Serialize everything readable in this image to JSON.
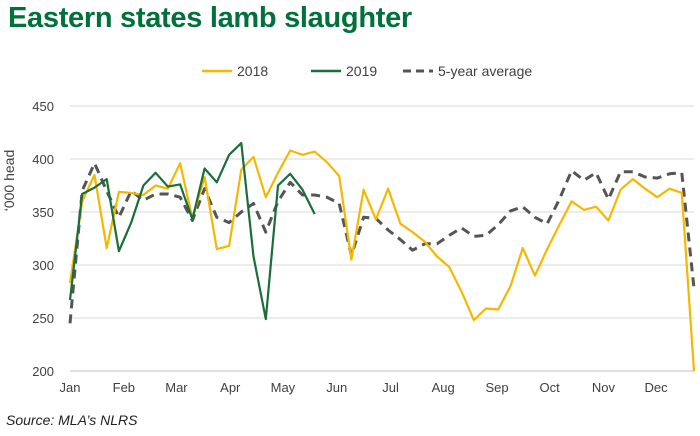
{
  "title": "Eastern states lamb slaughter",
  "source": "Source: MLA’s NLRS",
  "colors": {
    "title": "#00703c",
    "s2018": "#f5b800",
    "s2019": "#1a6e3a",
    "avg": "#555555"
  },
  "chart_data": {
    "type": "line",
    "title": "Eastern states lamb slaughter",
    "xlabel": "",
    "ylabel": "‘000 head",
    "ylim": [
      200,
      450
    ],
    "yticks": [
      200,
      250,
      300,
      350,
      400,
      450
    ],
    "xlim": [
      1,
      52
    ],
    "month_labels": [
      "Jan",
      "Feb",
      "Mar",
      "Apr",
      "May",
      "Jun",
      "Jul",
      "Aug",
      "Sep",
      "Oct",
      "Nov",
      "Dec"
    ],
    "month_weeks": [
      1,
      5.4,
      9.7,
      14.1,
      18.4,
      22.8,
      27.2,
      31.5,
      35.9,
      40.2,
      44.6,
      48.9
    ],
    "grid": true,
    "legend": "top-center",
    "series": [
      {
        "name": "2018",
        "style": "solid",
        "x": [
          1,
          2,
          3,
          4,
          5,
          6,
          7,
          8,
          9,
          10,
          11,
          12,
          13,
          14,
          15,
          16,
          17,
          18,
          19,
          20,
          21,
          22,
          23,
          24,
          25,
          26,
          27,
          28,
          29,
          30,
          31,
          32,
          33,
          34,
          35,
          36,
          37,
          38,
          39,
          40,
          41,
          42,
          43,
          44,
          45,
          46,
          47,
          48,
          49,
          50,
          51,
          52
        ],
        "values": [
          283,
          360,
          385,
          316,
          369,
          368,
          366,
          375,
          372,
          396,
          344,
          383,
          315,
          318,
          390,
          402,
          364,
          387,
          408,
          404,
          407,
          397,
          384,
          305,
          371,
          343,
          372,
          339,
          331,
          322,
          308,
          298,
          275,
          248,
          259,
          258,
          280,
          316,
          290,
          315,
          338,
          360,
          352,
          355,
          342,
          371,
          381,
          372,
          364,
          372,
          368,
          200
        ]
      },
      {
        "name": "2019",
        "style": "solid",
        "x": [
          1,
          2,
          3,
          4,
          5,
          6,
          7,
          8,
          9,
          10,
          11,
          12,
          13,
          14,
          15,
          16,
          17,
          18,
          19,
          20,
          21,
          22
        ],
        "values": [
          267,
          367,
          373,
          381,
          313,
          340,
          375,
          387,
          374,
          376,
          343,
          391,
          378,
          404,
          415,
          308,
          249,
          375,
          386,
          371,
          348,
          null
        ]
      },
      {
        "name": "5-year average",
        "style": "dashed",
        "x": [
          1,
          2,
          3,
          4,
          5,
          6,
          7,
          8,
          9,
          10,
          11,
          12,
          13,
          14,
          15,
          16,
          17,
          18,
          19,
          20,
          21,
          22,
          23,
          24,
          25,
          26,
          27,
          28,
          29,
          30,
          31,
          32,
          33,
          34,
          35,
          36,
          37,
          38,
          39,
          40,
          41,
          42,
          43,
          44,
          45,
          46,
          47,
          48,
          49,
          50,
          51,
          52
        ],
        "values": [
          245,
          370,
          396,
          370,
          345,
          370,
          361,
          367,
          367,
          364,
          342,
          372,
          345,
          340,
          350,
          358,
          331,
          360,
          378,
          366,
          366,
          364,
          358,
          309,
          345,
          344,
          333,
          324,
          314,
          320,
          320,
          328,
          335,
          327,
          328,
          338,
          351,
          355,
          345,
          339,
          362,
          389,
          380,
          387,
          362,
          388,
          388,
          383,
          382,
          386,
          387,
          278
        ]
      }
    ]
  }
}
